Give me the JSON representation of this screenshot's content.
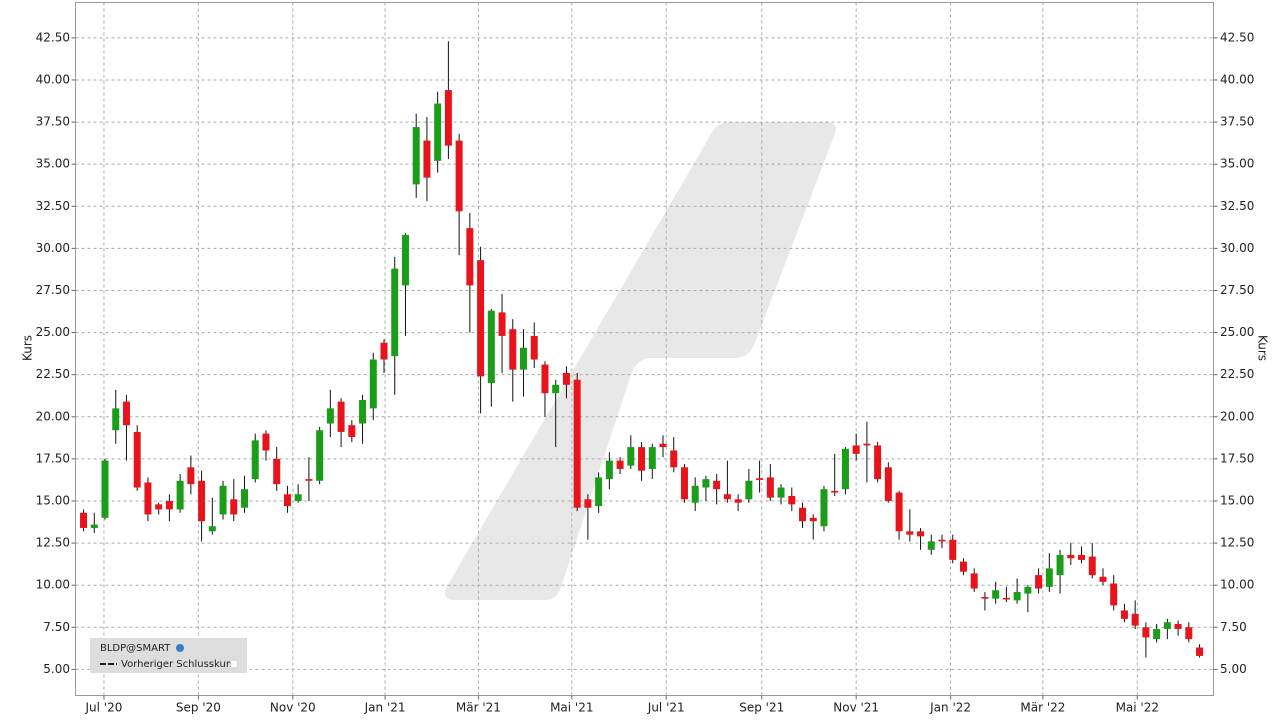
{
  "chart_data": {
    "type": "candlestick",
    "y_label": "Kurs",
    "legend": {
      "symbol": "BLDP@SMART",
      "line": "Vorheriger Schlusskurs"
    },
    "up_color": "#1a9e1a",
    "down_color": "#e8141c",
    "grid": true,
    "categories": [
      null,
      null,
      null,
      null,
      null,
      null,
      null,
      null,
      null,
      null,
      null,
      null,
      null,
      null,
      null,
      null,
      null,
      null,
      null,
      null,
      null,
      null,
      null,
      null,
      null,
      null,
      null,
      null,
      null,
      null,
      null,
      null,
      null,
      null,
      null,
      null,
      null,
      null,
      null,
      null,
      null,
      null,
      null,
      null,
      null,
      null,
      null,
      null,
      null,
      null,
      null,
      null,
      null,
      null,
      null,
      null,
      null,
      null,
      null,
      null,
      null,
      null,
      null,
      null,
      null,
      null,
      null,
      null,
      null,
      null,
      null,
      null,
      null,
      null,
      null,
      null,
      null,
      null,
      null,
      null,
      null,
      null,
      null,
      null,
      null,
      null,
      null,
      null,
      null,
      null,
      null,
      null,
      null,
      null,
      null,
      null,
      null,
      null,
      null,
      null,
      null,
      null,
      null,
      null,
      null
    ],
    "open": [
      14.3,
      13.4,
      14.0,
      19.2,
      20.9,
      19.1,
      16.1,
      14.8,
      15.0,
      14.5,
      17.0,
      16.2,
      13.2,
      14.2,
      15.1,
      14.6,
      16.3,
      19.0,
      17.5,
      15.4,
      15.0,
      16.3,
      16.2,
      19.6,
      20.9,
      19.5,
      19.6,
      20.5,
      24.4,
      23.6,
      27.8,
      33.8,
      36.4,
      35.2,
      39.4,
      36.4,
      31.2,
      29.3,
      22.0,
      26.2,
      25.2,
      22.8,
      24.8,
      23.1,
      21.4,
      22.6,
      22.2,
      15.1,
      14.7,
      16.3,
      17.4,
      17.1,
      18.2,
      16.9,
      18.4,
      18.0,
      17.0,
      14.9,
      15.8,
      16.2,
      15.4,
      15.1,
      15.1,
      16.35,
      16.4,
      15.2,
      15.3,
      14.6,
      14.0,
      13.5,
      15.6,
      15.7,
      18.3,
      18.4,
      18.3,
      17.0,
      15.5,
      13.2,
      13.2,
      12.1,
      12.7,
      12.7,
      11.4,
      10.7,
      9.3,
      9.2,
      9.25,
      9.1,
      9.5,
      10.6,
      9.9,
      10.6,
      11.8,
      11.8,
      11.7,
      10.5,
      10.1,
      8.5,
      8.3,
      7.5,
      6.8,
      7.4,
      7.7,
      7.5,
      6.3
    ],
    "high": [
      14.5,
      14.3,
      17.5,
      21.6,
      21.3,
      19.5,
      16.4,
      14.9,
      15.4,
      16.6,
      17.7,
      16.8,
      15.2,
      16.2,
      16.3,
      16.5,
      19.0,
      19.2,
      18.2,
      15.9,
      16.0,
      17.6,
      19.4,
      21.6,
      21.1,
      19.8,
      21.3,
      23.8,
      24.6,
      29.5,
      30.9,
      38.0,
      37.8,
      39.3,
      42.3,
      36.8,
      32.1,
      30.1,
      26.4,
      27.3,
      25.8,
      25.2,
      25.6,
      23.3,
      22.2,
      23.0,
      22.6,
      15.4,
      16.7,
      17.9,
      17.6,
      18.9,
      18.5,
      18.4,
      18.9,
      18.8,
      17.2,
      16.4,
      16.5,
      16.6,
      17.4,
      15.4,
      16.9,
      17.4,
      17.2,
      16.0,
      15.8,
      14.9,
      14.2,
      15.9,
      17.8,
      18.2,
      19.0,
      19.7,
      18.5,
      17.3,
      15.6,
      14.5,
      13.4,
      13.0,
      13.0,
      13.0,
      11.6,
      11.0,
      9.6,
      10.2,
      9.9,
      10.4,
      10.0,
      11.0,
      11.9,
      12.1,
      12.5,
      12.3,
      12.5,
      11.0,
      10.6,
      8.9,
      9.1,
      7.8,
      7.7,
      8.0,
      7.9,
      7.8,
      6.5
    ],
    "low": [
      13.2,
      13.1,
      13.9,
      18.4,
      17.4,
      15.6,
      13.8,
      14.2,
      13.8,
      14.3,
      15.4,
      12.6,
      13.0,
      13.9,
      13.8,
      14.3,
      16.1,
      17.4,
      15.6,
      14.3,
      14.9,
      15.0,
      16.0,
      18.8,
      18.2,
      18.5,
      18.4,
      19.8,
      22.6,
      21.3,
      24.8,
      33.0,
      32.8,
      34.5,
      35.3,
      29.6,
      25.0,
      20.2,
      20.6,
      22.6,
      20.9,
      21.2,
      22.9,
      20.0,
      18.2,
      21.1,
      14.4,
      12.7,
      14.3,
      15.7,
      16.6,
      16.9,
      16.2,
      16.3,
      17.6,
      16.7,
      14.9,
      14.4,
      15.0,
      14.8,
      14.9,
      14.4,
      14.9,
      15.5,
      15.0,
      14.8,
      14.4,
      13.4,
      12.7,
      13.2,
      15.3,
      15.4,
      17.4,
      16.1,
      16.1,
      14.9,
      12.7,
      12.6,
      12.1,
      11.8,
      12.2,
      11.3,
      10.6,
      9.6,
      8.5,
      8.9,
      9.0,
      8.9,
      8.4,
      9.5,
      9.6,
      9.5,
      11.2,
      11.3,
      10.4,
      10.0,
      8.5,
      7.8,
      7.4,
      5.7,
      6.6,
      6.8,
      7.0,
      6.6,
      5.7
    ],
    "close": [
      13.4,
      13.6,
      17.4,
      20.5,
      19.5,
      15.8,
      14.2,
      14.5,
      14.5,
      16.2,
      16.0,
      13.8,
      13.5,
      15.9,
      14.2,
      15.7,
      18.6,
      18.0,
      16.0,
      14.7,
      15.4,
      16.2,
      19.2,
      20.5,
      19.1,
      18.8,
      21.0,
      23.4,
      23.4,
      28.8,
      30.8,
      37.2,
      34.2,
      38.6,
      36.1,
      32.2,
      27.8,
      22.4,
      26.3,
      24.8,
      22.8,
      24.1,
      23.4,
      21.4,
      21.9,
      21.9,
      14.6,
      14.6,
      16.4,
      17.4,
      16.9,
      18.2,
      16.8,
      18.2,
      18.2,
      17.0,
      15.1,
      15.9,
      16.3,
      15.7,
      15.1,
      14.9,
      16.2,
      16.25,
      15.2,
      15.8,
      14.8,
      13.8,
      13.8,
      15.7,
      15.5,
      18.1,
      17.8,
      18.3,
      16.3,
      15.0,
      13.2,
      13.0,
      12.9,
      12.6,
      12.6,
      11.5,
      10.8,
      9.8,
      9.2,
      9.7,
      9.15,
      9.6,
      9.9,
      9.8,
      11.0,
      11.8,
      11.6,
      11.5,
      10.6,
      10.2,
      8.8,
      8.0,
      7.6,
      6.9,
      7.4,
      7.8,
      7.4,
      6.8,
      5.8
    ],
    "xlim": [
      -0.75,
      105.3
    ],
    "xticks": [
      {
        "value": 1.9,
        "label": "Jul '20"
      },
      {
        "value": 10.7,
        "label": "Sep '20"
      },
      {
        "value": 19.5,
        "label": "Nov '20"
      },
      {
        "value": 28.1,
        "label": "Jan '21"
      },
      {
        "value": 36.8,
        "label": "Mär '21"
      },
      {
        "value": 45.5,
        "label": "Mai '21"
      },
      {
        "value": 54.3,
        "label": "Jul '21"
      },
      {
        "value": 63.2,
        "label": "Sep '21"
      },
      {
        "value": 72.0,
        "label": "Nov '21"
      },
      {
        "value": 80.8,
        "label": "Jan '22"
      },
      {
        "value": 89.4,
        "label": "Mär '22"
      },
      {
        "value": 98.2,
        "label": "Mai '22"
      }
    ],
    "ylim": [
      3.45,
      44.6
    ],
    "yticks": [
      {
        "value": 5,
        "label": "5.00"
      },
      {
        "value": 7.5,
        "label": "7.50"
      },
      {
        "value": 10,
        "label": "10.00"
      },
      {
        "value": 12.5,
        "label": "12.50"
      },
      {
        "value": 15,
        "label": "15.00"
      },
      {
        "value": 17.5,
        "label": "17.50"
      },
      {
        "value": 20,
        "label": "20.00"
      },
      {
        "value": 22.5,
        "label": "22.50"
      },
      {
        "value": 25,
        "label": "25.00"
      },
      {
        "value": 27.5,
        "label": "27.50"
      },
      {
        "value": 30,
        "label": "30.00"
      },
      {
        "value": 32.5,
        "label": "32.50"
      },
      {
        "value": 35,
        "label": "35.00"
      },
      {
        "value": 37.5,
        "label": "37.50"
      },
      {
        "value": 40,
        "label": "40.00"
      },
      {
        "value": 42.5,
        "label": "42.50"
      }
    ]
  }
}
